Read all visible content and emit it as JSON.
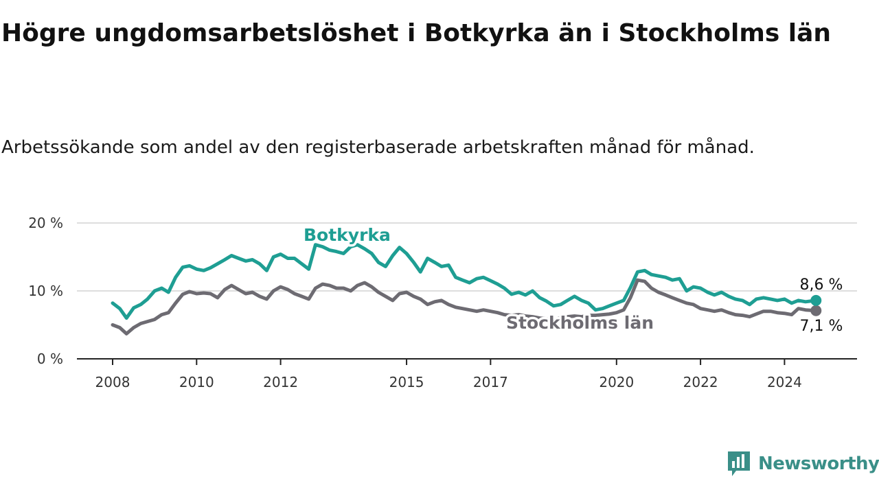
{
  "title": "Högre ungdomsarbetslöshet i Botkyrka än i Stockholms län",
  "subtitle": "Arbetssökande som andel av den registerbaserade arbetskraften månad för månad.",
  "brand": {
    "name": "Newsworthy",
    "icon": "newsworthy-logo-icon",
    "color": "#3a8f88"
  },
  "chart_data": {
    "type": "line",
    "x_ticks": [
      "2008",
      "2010",
      "2012",
      "2015",
      "2017",
      "2020",
      "2022",
      "2024"
    ],
    "y_ticks": [
      "0 %",
      "10 %",
      "20 %"
    ],
    "ylim": [
      0,
      20
    ],
    "grid": true,
    "legend": "inline labels",
    "series": [
      {
        "name": "Botkyrka",
        "color": "#1e9e93",
        "end_label": "8,6 %",
        "points": [
          [
            2008.0,
            8.2
          ],
          [
            2008.17,
            7.4
          ],
          [
            2008.33,
            6.0
          ],
          [
            2008.5,
            7.5
          ],
          [
            2008.67,
            8.0
          ],
          [
            2008.83,
            8.8
          ],
          [
            2009.0,
            10.0
          ],
          [
            2009.17,
            10.4
          ],
          [
            2009.33,
            9.8
          ],
          [
            2009.5,
            12.0
          ],
          [
            2009.67,
            13.5
          ],
          [
            2009.83,
            13.7
          ],
          [
            2010.0,
            13.2
          ],
          [
            2010.17,
            13.0
          ],
          [
            2010.33,
            13.4
          ],
          [
            2010.5,
            14.0
          ],
          [
            2010.67,
            14.6
          ],
          [
            2010.83,
            15.2
          ],
          [
            2011.0,
            14.8
          ],
          [
            2011.17,
            14.4
          ],
          [
            2011.33,
            14.6
          ],
          [
            2011.5,
            14.0
          ],
          [
            2011.67,
            13.0
          ],
          [
            2011.83,
            15.0
          ],
          [
            2012.0,
            15.4
          ],
          [
            2012.17,
            14.8
          ],
          [
            2012.33,
            14.8
          ],
          [
            2012.5,
            14.0
          ],
          [
            2012.67,
            13.2
          ],
          [
            2012.83,
            16.8
          ],
          [
            2013.0,
            16.5
          ],
          [
            2013.17,
            16.0
          ],
          [
            2013.33,
            15.8
          ],
          [
            2013.5,
            15.5
          ],
          [
            2013.67,
            16.5
          ],
          [
            2013.83,
            16.8
          ],
          [
            2014.0,
            16.2
          ],
          [
            2014.17,
            15.5
          ],
          [
            2014.33,
            14.2
          ],
          [
            2014.5,
            13.6
          ],
          [
            2014.67,
            15.2
          ],
          [
            2014.83,
            16.4
          ],
          [
            2015.0,
            15.5
          ],
          [
            2015.17,
            14.2
          ],
          [
            2015.33,
            12.8
          ],
          [
            2015.5,
            14.8
          ],
          [
            2015.67,
            14.2
          ],
          [
            2015.83,
            13.6
          ],
          [
            2016.0,
            13.8
          ],
          [
            2016.17,
            12.0
          ],
          [
            2016.33,
            11.6
          ],
          [
            2016.5,
            11.2
          ],
          [
            2016.67,
            11.8
          ],
          [
            2016.83,
            12.0
          ],
          [
            2017.0,
            11.5
          ],
          [
            2017.17,
            11.0
          ],
          [
            2017.33,
            10.4
          ],
          [
            2017.5,
            9.5
          ],
          [
            2017.67,
            9.8
          ],
          [
            2017.83,
            9.4
          ],
          [
            2018.0,
            10.0
          ],
          [
            2018.17,
            9.0
          ],
          [
            2018.33,
            8.5
          ],
          [
            2018.5,
            7.8
          ],
          [
            2018.67,
            8.0
          ],
          [
            2018.83,
            8.6
          ],
          [
            2019.0,
            9.2
          ],
          [
            2019.17,
            8.6
          ],
          [
            2019.33,
            8.2
          ],
          [
            2019.5,
            7.2
          ],
          [
            2019.67,
            7.4
          ],
          [
            2019.83,
            7.8
          ],
          [
            2020.0,
            8.2
          ],
          [
            2020.17,
            8.6
          ],
          [
            2020.33,
            10.5
          ],
          [
            2020.5,
            12.8
          ],
          [
            2020.67,
            13.0
          ],
          [
            2020.83,
            12.4
          ],
          [
            2021.0,
            12.2
          ],
          [
            2021.17,
            12.0
          ],
          [
            2021.33,
            11.6
          ],
          [
            2021.5,
            11.8
          ],
          [
            2021.67,
            10.0
          ],
          [
            2021.83,
            10.6
          ],
          [
            2022.0,
            10.4
          ],
          [
            2022.17,
            9.8
          ],
          [
            2022.33,
            9.4
          ],
          [
            2022.5,
            9.8
          ],
          [
            2022.67,
            9.2
          ],
          [
            2022.83,
            8.8
          ],
          [
            2023.0,
            8.6
          ],
          [
            2023.17,
            8.0
          ],
          [
            2023.33,
            8.8
          ],
          [
            2023.5,
            9.0
          ],
          [
            2023.67,
            8.8
          ],
          [
            2023.83,
            8.6
          ],
          [
            2024.0,
            8.8
          ],
          [
            2024.17,
            8.2
          ],
          [
            2024.33,
            8.6
          ],
          [
            2024.5,
            8.4
          ],
          [
            2024.75,
            8.6
          ]
        ]
      },
      {
        "name": "Stockholms län",
        "color": "#6d6b72",
        "end_label": "7,1 %",
        "points": [
          [
            2008.0,
            5.0
          ],
          [
            2008.17,
            4.6
          ],
          [
            2008.33,
            3.7
          ],
          [
            2008.5,
            4.6
          ],
          [
            2008.67,
            5.2
          ],
          [
            2008.83,
            5.5
          ],
          [
            2009.0,
            5.8
          ],
          [
            2009.17,
            6.5
          ],
          [
            2009.33,
            6.8
          ],
          [
            2009.5,
            8.2
          ],
          [
            2009.67,
            9.5
          ],
          [
            2009.83,
            9.9
          ],
          [
            2010.0,
            9.6
          ],
          [
            2010.17,
            9.7
          ],
          [
            2010.33,
            9.6
          ],
          [
            2010.5,
            9.0
          ],
          [
            2010.67,
            10.2
          ],
          [
            2010.83,
            10.8
          ],
          [
            2011.0,
            10.2
          ],
          [
            2011.17,
            9.6
          ],
          [
            2011.33,
            9.8
          ],
          [
            2011.5,
            9.2
          ],
          [
            2011.67,
            8.8
          ],
          [
            2011.83,
            10.0
          ],
          [
            2012.0,
            10.6
          ],
          [
            2012.17,
            10.2
          ],
          [
            2012.33,
            9.6
          ],
          [
            2012.5,
            9.2
          ],
          [
            2012.67,
            8.8
          ],
          [
            2012.83,
            10.4
          ],
          [
            2013.0,
            11.0
          ],
          [
            2013.17,
            10.8
          ],
          [
            2013.33,
            10.4
          ],
          [
            2013.5,
            10.4
          ],
          [
            2013.67,
            10.0
          ],
          [
            2013.83,
            10.8
          ],
          [
            2014.0,
            11.2
          ],
          [
            2014.17,
            10.6
          ],
          [
            2014.33,
            9.8
          ],
          [
            2014.5,
            9.2
          ],
          [
            2014.67,
            8.6
          ],
          [
            2014.83,
            9.6
          ],
          [
            2015.0,
            9.8
          ],
          [
            2015.17,
            9.2
          ],
          [
            2015.33,
            8.8
          ],
          [
            2015.5,
            8.0
          ],
          [
            2015.67,
            8.4
          ],
          [
            2015.83,
            8.6
          ],
          [
            2016.0,
            8.0
          ],
          [
            2016.17,
            7.6
          ],
          [
            2016.33,
            7.4
          ],
          [
            2016.5,
            7.2
          ],
          [
            2016.67,
            7.0
          ],
          [
            2016.83,
            7.2
          ],
          [
            2017.0,
            7.0
          ],
          [
            2017.17,
            6.8
          ],
          [
            2017.33,
            6.5
          ],
          [
            2017.5,
            6.4
          ],
          [
            2017.67,
            6.5
          ],
          [
            2017.83,
            6.3
          ],
          [
            2018.0,
            6.2
          ],
          [
            2018.17,
            6.0
          ],
          [
            2018.33,
            5.9
          ],
          [
            2018.5,
            5.8
          ],
          [
            2018.67,
            6.0
          ],
          [
            2018.83,
            6.2
          ],
          [
            2019.0,
            6.3
          ],
          [
            2019.17,
            6.2
          ],
          [
            2019.33,
            6.4
          ],
          [
            2019.5,
            6.4
          ],
          [
            2019.67,
            6.5
          ],
          [
            2019.83,
            6.6
          ],
          [
            2020.0,
            6.8
          ],
          [
            2020.17,
            7.2
          ],
          [
            2020.33,
            9.0
          ],
          [
            2020.5,
            11.6
          ],
          [
            2020.67,
            11.4
          ],
          [
            2020.83,
            10.4
          ],
          [
            2021.0,
            9.8
          ],
          [
            2021.17,
            9.4
          ],
          [
            2021.33,
            9.0
          ],
          [
            2021.5,
            8.6
          ],
          [
            2021.67,
            8.2
          ],
          [
            2021.83,
            8.0
          ],
          [
            2022.0,
            7.4
          ],
          [
            2022.17,
            7.2
          ],
          [
            2022.33,
            7.0
          ],
          [
            2022.5,
            7.2
          ],
          [
            2022.67,
            6.8
          ],
          [
            2022.83,
            6.5
          ],
          [
            2023.0,
            6.4
          ],
          [
            2023.17,
            6.2
          ],
          [
            2023.33,
            6.6
          ],
          [
            2023.5,
            7.0
          ],
          [
            2023.67,
            7.0
          ],
          [
            2023.83,
            6.8
          ],
          [
            2024.0,
            6.7
          ],
          [
            2024.17,
            6.5
          ],
          [
            2024.33,
            7.4
          ],
          [
            2024.5,
            7.2
          ],
          [
            2024.75,
            7.1
          ]
        ]
      }
    ]
  }
}
